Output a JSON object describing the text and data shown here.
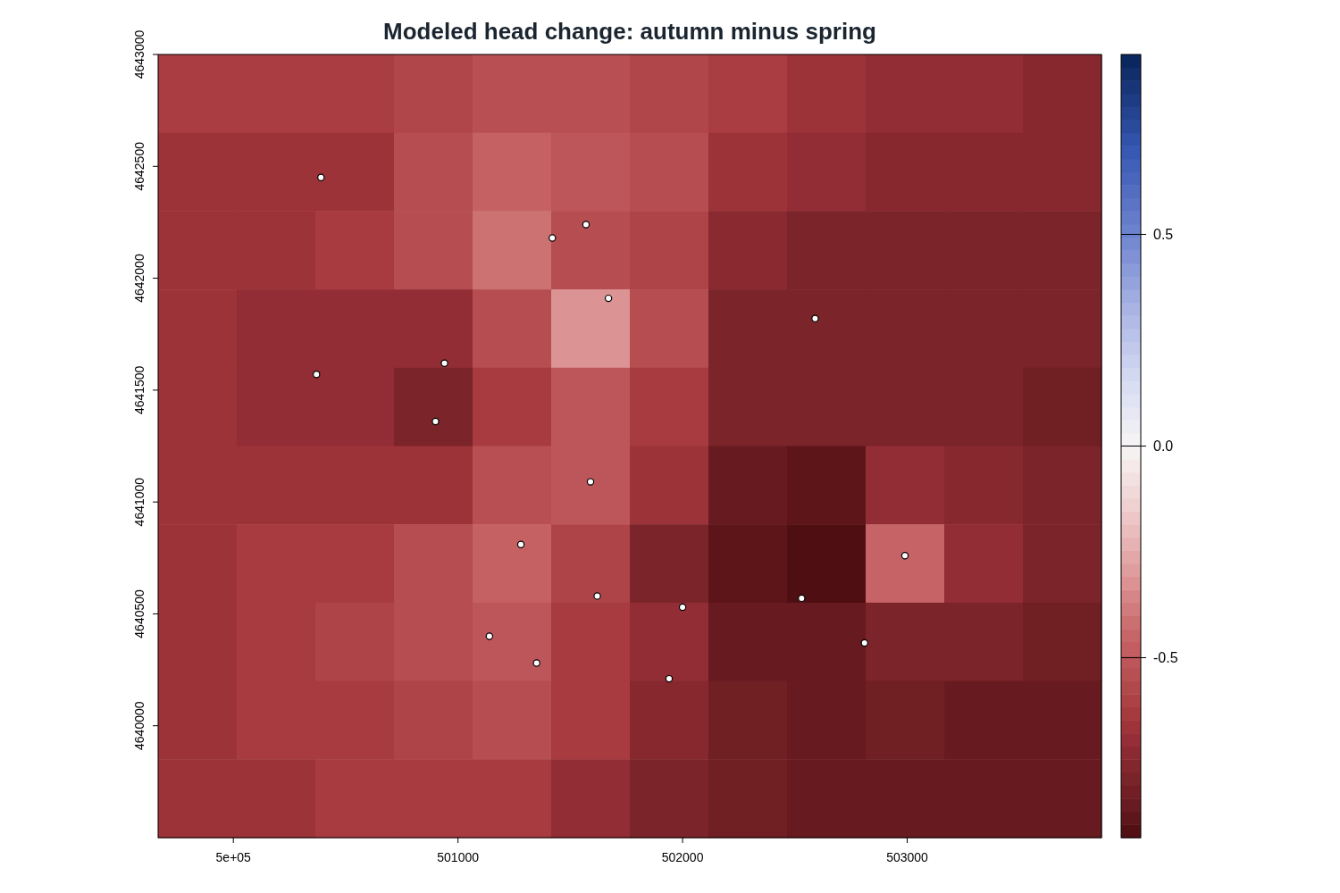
{
  "chart_data": [
    {
      "type": "heatmap",
      "title": "Modeled head change: autumn minus spring",
      "categories": [
        null,
        null,
        null,
        null,
        null,
        null,
        null,
        null,
        null,
        null,
        null,
        null
      ],
      "y_categories": [
        null,
        null,
        null,
        null,
        null,
        null,
        null,
        null,
        null,
        null
      ],
      "clim": [
        -0.925,
        0.925
      ],
      "cticks": [
        {
          "value": -0.5,
          "label": "-0.5"
        },
        {
          "value": 0,
          "label": "0.0"
        },
        {
          "value": 0.5,
          "label": "0.5"
        }
      ],
      "cells": [
        [
          -0.62,
          -0.62,
          -0.62,
          -0.58,
          -0.54,
          -0.54,
          -0.58,
          -0.62,
          -0.67,
          -0.7,
          -0.7,
          -0.74
        ],
        [
          -0.67,
          -0.67,
          -0.67,
          -0.55,
          -0.47,
          -0.51,
          -0.55,
          -0.67,
          -0.7,
          -0.74,
          -0.74,
          -0.74
        ],
        [
          -0.67,
          -0.67,
          -0.63,
          -0.55,
          -0.41,
          -0.55,
          -0.59,
          -0.73,
          -0.78,
          -0.78,
          -0.78,
          -0.78
        ],
        [
          -0.67,
          -0.7,
          -0.7,
          -0.7,
          -0.55,
          -0.32,
          -0.55,
          -0.78,
          -0.78,
          -0.78,
          -0.78,
          -0.78
        ],
        [
          -0.67,
          -0.7,
          -0.7,
          -0.78,
          -0.63,
          -0.51,
          -0.63,
          -0.78,
          -0.78,
          -0.78,
          -0.78,
          -0.82
        ],
        [
          -0.67,
          -0.67,
          -0.67,
          -0.67,
          -0.54,
          -0.51,
          -0.67,
          -0.85,
          -0.88,
          -0.7,
          -0.74,
          -0.78
        ],
        [
          -0.67,
          -0.63,
          -0.63,
          -0.55,
          -0.47,
          -0.59,
          -0.78,
          -0.88,
          -0.92,
          -0.46,
          -0.7,
          -0.78
        ],
        [
          -0.67,
          -0.63,
          -0.59,
          -0.55,
          -0.51,
          -0.63,
          -0.7,
          -0.85,
          -0.85,
          -0.78,
          -0.78,
          -0.82
        ],
        [
          -0.67,
          -0.63,
          -0.63,
          -0.59,
          -0.55,
          -0.63,
          -0.74,
          -0.82,
          -0.85,
          -0.82,
          -0.85,
          -0.85
        ],
        [
          -0.67,
          -0.67,
          -0.63,
          -0.63,
          -0.63,
          -0.7,
          -0.78,
          -0.82,
          -0.85,
          -0.85,
          -0.85,
          -0.85
        ]
      ]
    },
    {
      "type": "scatter",
      "color": "#ffffff",
      "marker": "circle",
      "xlim": [
        499665,
        503865
      ],
      "ylim": [
        4639500,
        4643000
      ],
      "xticks": [
        {
          "value": 500000,
          "label": "5e+05"
        },
        501000,
        502000,
        503000
      ],
      "yticks": [
        4640000,
        4640500,
        4641000,
        4641500,
        4642000,
        4642500,
        4643000
      ],
      "x": [
        500390,
        501570,
        501420,
        501670,
        502590,
        500940,
        500370,
        500900,
        501590,
        501280,
        502990,
        501620,
        502530,
        502000,
        501140,
        502810,
        501350,
        501940
      ],
      "values": [
        4642450,
        4642240,
        4642180,
        4641910,
        4641820,
        4641620,
        4641570,
        4641360,
        4641090,
        4640810,
        4640760,
        4640580,
        4640570,
        4640530,
        4640400,
        4640370,
        4640280,
        4640210
      ]
    }
  ]
}
